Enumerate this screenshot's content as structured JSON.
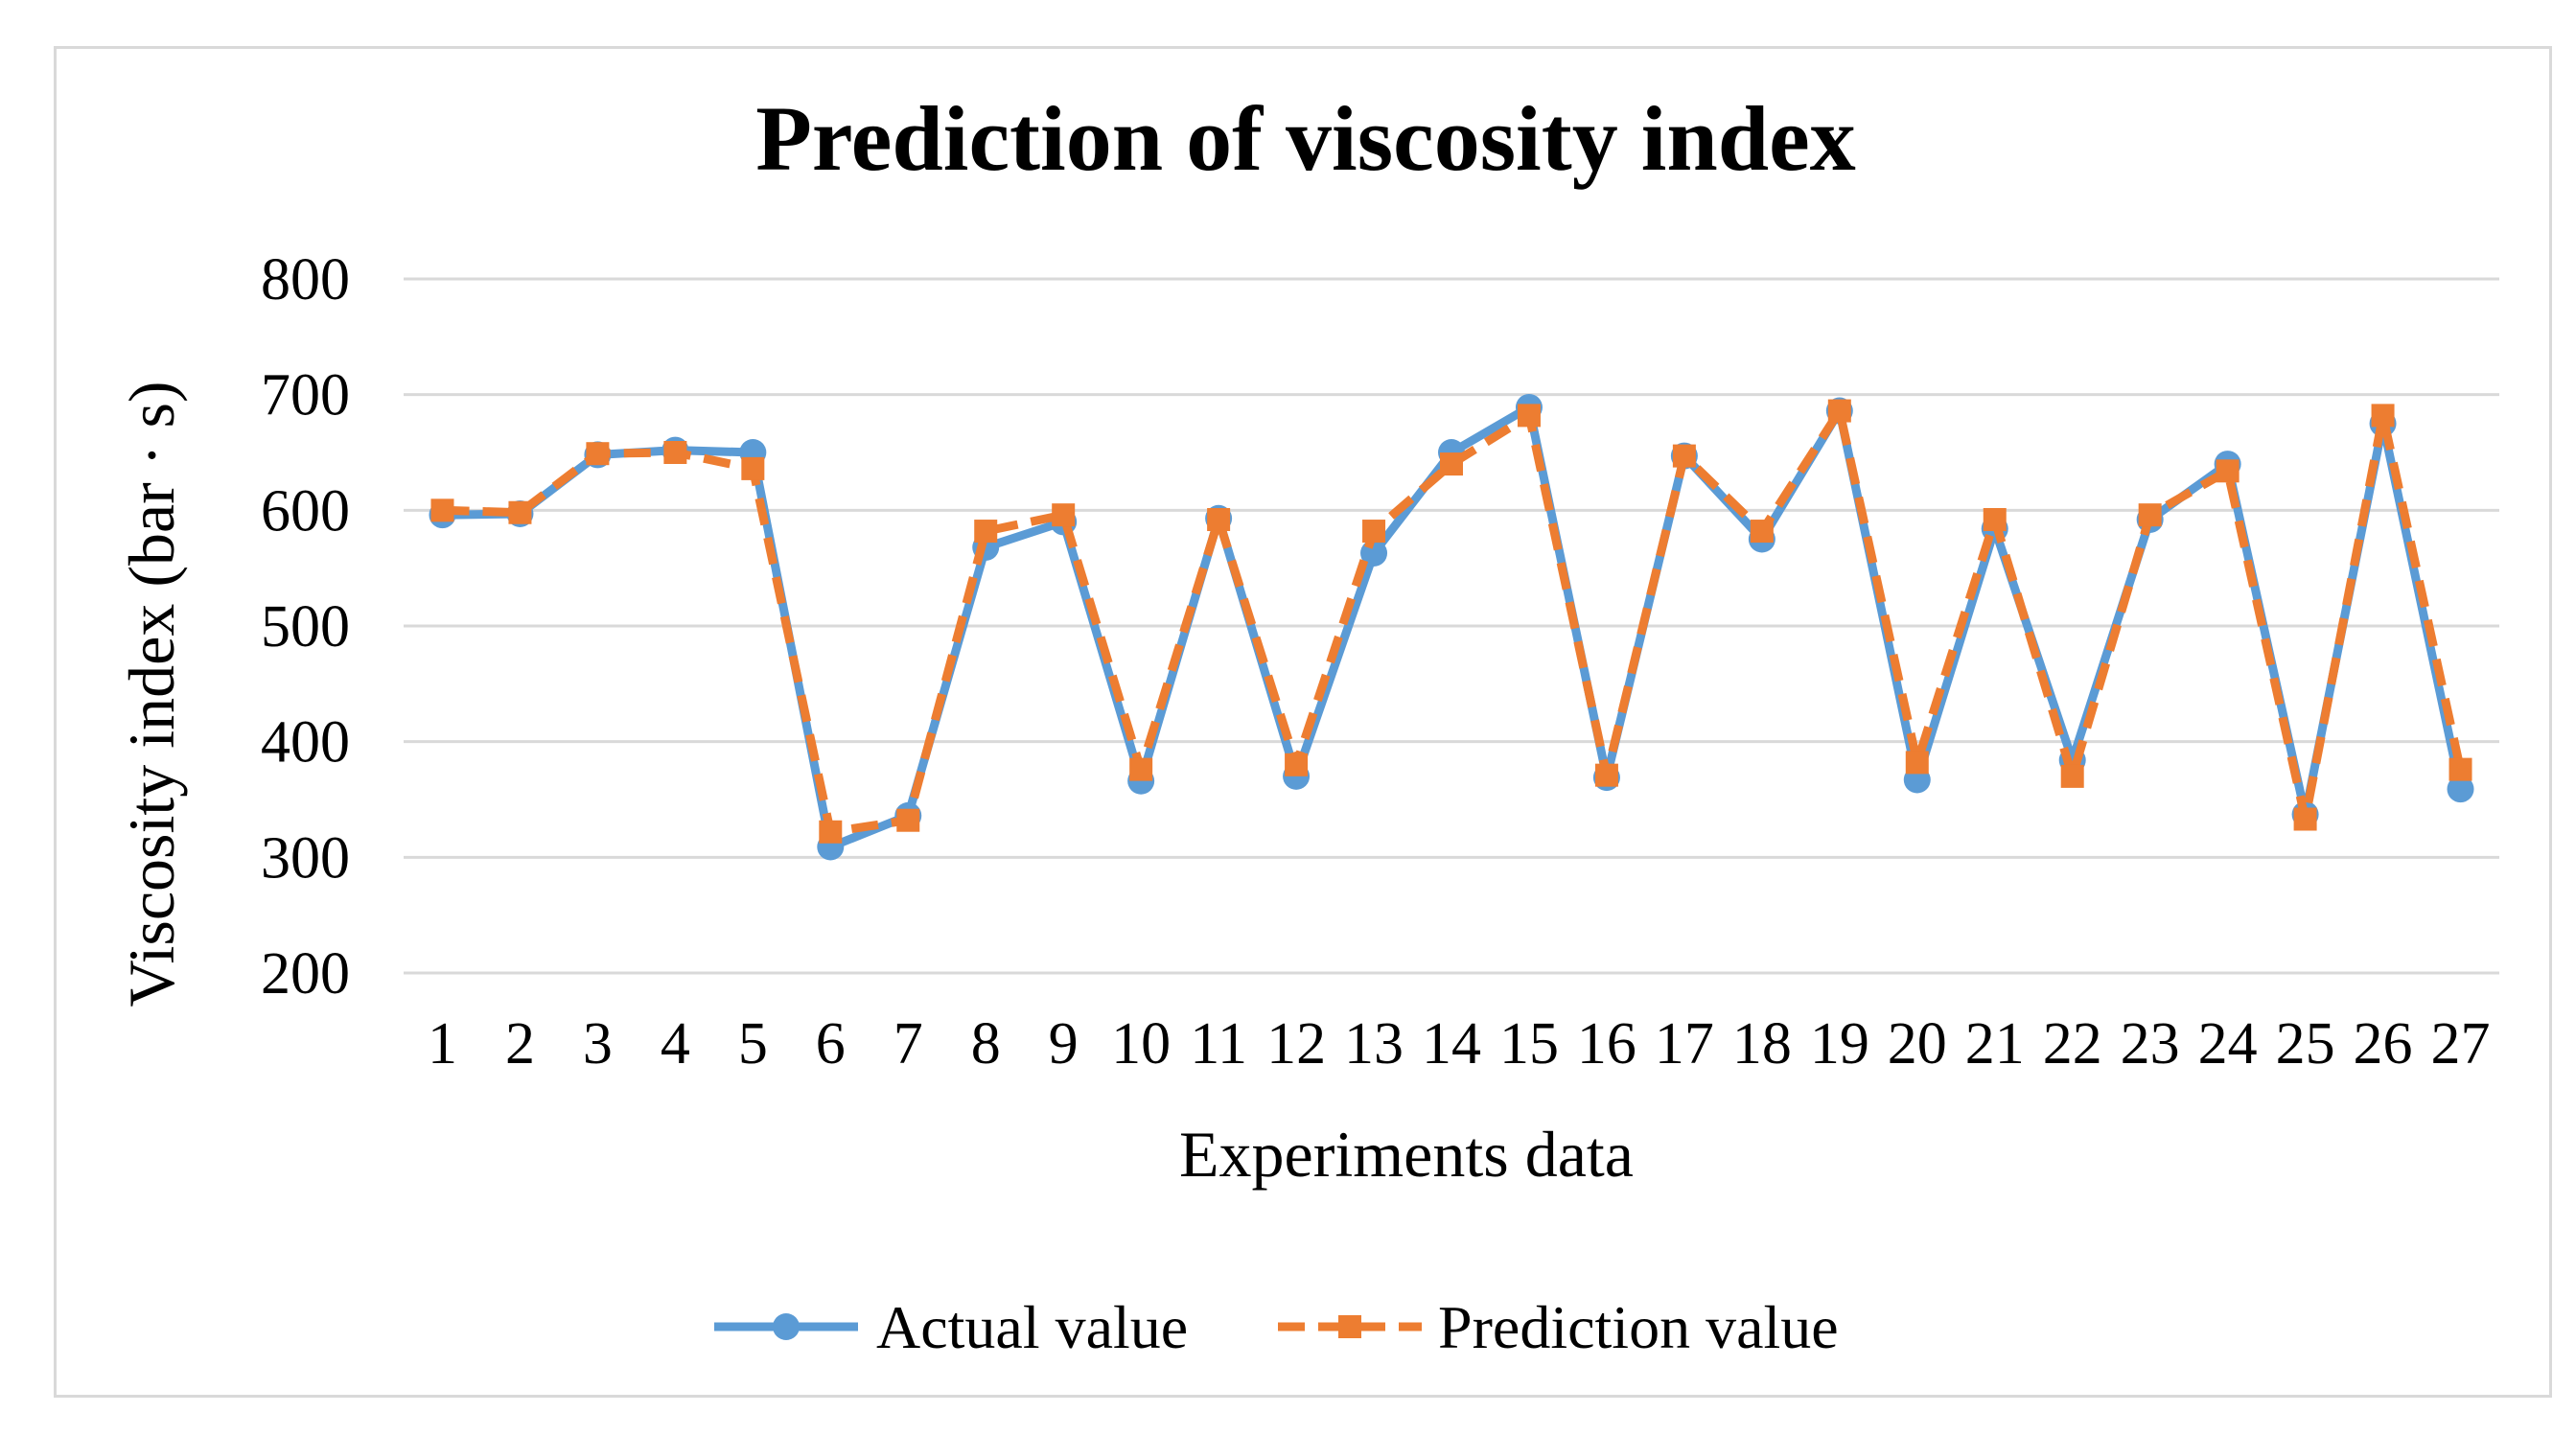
{
  "chart_data": {
    "type": "line",
    "title": "Prediction of viscosity index",
    "xlabel": "Experiments  data",
    "ylabel": "Viscosity  index  (bar · s)",
    "ylim": [
      200,
      800
    ],
    "yticks": [
      "200",
      "300",
      "400",
      "500",
      "600",
      "700",
      "800"
    ],
    "grid": true,
    "legend_position": "bottom",
    "categories": [
      "1",
      "2",
      "3",
      "4",
      "5",
      "6",
      "7",
      "8",
      "9",
      "10",
      "11",
      "12",
      "13",
      "14",
      "15",
      "16",
      "17",
      "18",
      "19",
      "20",
      "21",
      "22",
      "23",
      "24",
      "25",
      "26",
      "27"
    ],
    "series": [
      {
        "name": "Actual value",
        "color": "#5B9BD5",
        "marker": "circle",
        "dash": "solid",
        "values": [
          596,
          597,
          648,
          652,
          650,
          309,
          336,
          568,
          590,
          366,
          593,
          370,
          563,
          650,
          689,
          369,
          647,
          575,
          686,
          367,
          584,
          384,
          592,
          640,
          337,
          675,
          359
        ]
      },
      {
        "name": "Prediction value",
        "color": "#ED7D31",
        "marker": "square",
        "dash": "dashed",
        "values": [
          600,
          598,
          649,
          650,
          636,
          322,
          332,
          582,
          596,
          376,
          592,
          380,
          582,
          640,
          682,
          371,
          647,
          582,
          686,
          382,
          592,
          370,
          596,
          634,
          333,
          682,
          376
        ]
      }
    ]
  }
}
